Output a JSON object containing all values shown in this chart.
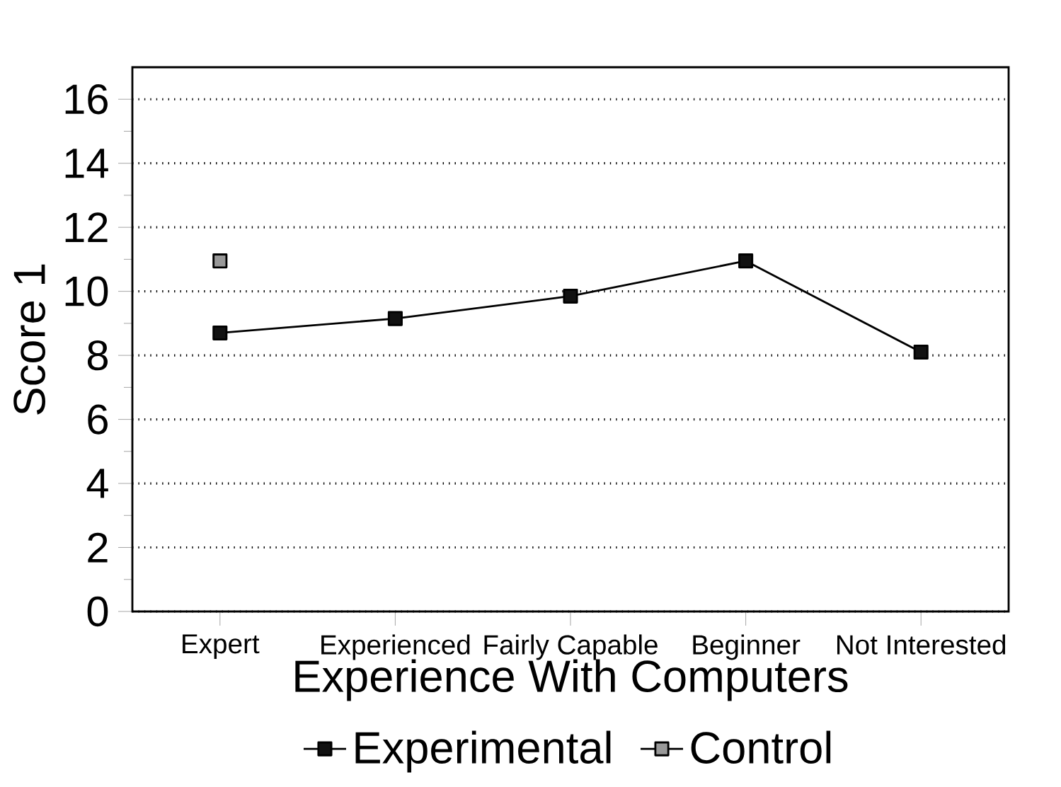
{
  "chart_data": {
    "type": "line",
    "xlabel": "Experience With Computers",
    "ylabel": "Score 1",
    "categories": [
      "Expert",
      "Experienced",
      "Fairly Capable",
      "Beginner",
      "Not Interested"
    ],
    "series": [
      {
        "name": "Experimental",
        "color": "#111111",
        "values": [
          8.7,
          9.15,
          9.85,
          10.95,
          8.1
        ]
      },
      {
        "name": "Control",
        "color": "#999999",
        "values": [
          10.95,
          null,
          null,
          null,
          null
        ]
      }
    ],
    "ylim": [
      0,
      17
    ],
    "yticks": [
      0,
      {
        "value": 1,
        "label": null
      },
      2,
      {
        "value": 3,
        "label": null
      },
      4,
      {
        "value": 5,
        "label": null
      },
      6,
      {
        "value": 7,
        "label": null
      },
      8,
      {
        "value": 9,
        "label": null
      },
      10,
      {
        "value": 11,
        "label": null
      },
      12,
      {
        "value": 13,
        "label": null
      },
      14,
      {
        "value": 15,
        "label": null
      },
      16
    ],
    "grid": "y",
    "legend": "bottom",
    "marker": "square",
    "line_style": "solid"
  }
}
